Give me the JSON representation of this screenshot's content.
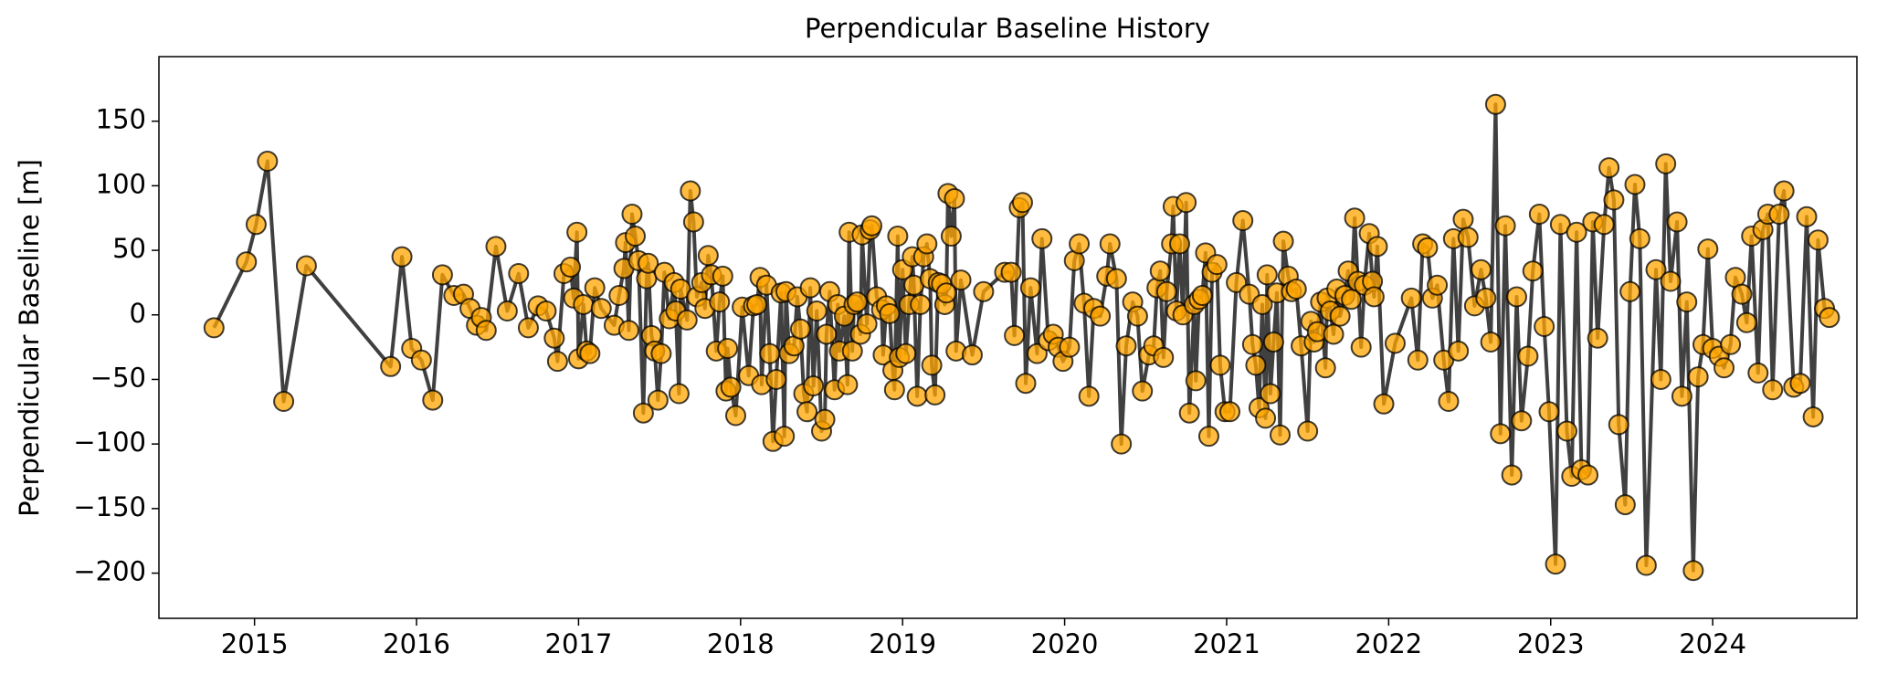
{
  "chart_data": {
    "type": "line",
    "title": "Perpendicular Baseline History",
    "ylabel": "Perpendicular Baseline [m]",
    "line_color": "#404040",
    "marker_color": "#ffa500",
    "marker_edge": "#000000",
    "xlim": [
      2014.41,
      2024.89
    ],
    "ylim": [
      -235,
      200
    ],
    "xticks": [
      2015,
      2016,
      2017,
      2018,
      2019,
      2020,
      2021,
      2022,
      2023,
      2024
    ],
    "yticks": [
      {
        "value": -200,
        "label": "−200"
      },
      {
        "value": -150,
        "label": "−150"
      },
      {
        "value": -100,
        "label": "−100"
      },
      {
        "value": -50,
        "label": "−50"
      },
      0,
      50,
      100,
      150
    ],
    "x": [
      2014.75,
      2014.95,
      2015.01,
      2015.08,
      2015.18,
      2015.32,
      2015.84,
      2015.91,
      2015.97,
      2016.03,
      2016.1,
      2016.16,
      2016.23,
      2016.29,
      2016.33,
      2016.37,
      2016.4,
      2016.43,
      2016.49,
      2016.56,
      2016.63,
      2016.69,
      2016.75,
      2016.8,
      2016.85,
      2016.87,
      2016.91,
      2016.95,
      2016.97,
      2016.99,
      2017.0,
      2017.03,
      2017.05,
      2017.07,
      2017.1,
      2017.14,
      2017.22,
      2017.25,
      2017.28,
      2017.29,
      2017.31,
      2017.33,
      2017.35,
      2017.37,
      2017.4,
      2017.42,
      2017.43,
      2017.45,
      2017.47,
      2017.49,
      2017.51,
      2017.53,
      2017.56,
      2017.59,
      2017.6,
      2017.62,
      2017.63,
      2017.67,
      2017.69,
      2017.71,
      2017.73,
      2017.76,
      2017.78,
      2017.8,
      2017.82,
      2017.85,
      2017.87,
      2017.89,
      2017.91,
      2017.92,
      2017.94,
      2017.97,
      2018.01,
      2018.05,
      2018.08,
      2018.1,
      2018.12,
      2018.13,
      2018.16,
      2018.18,
      2018.2,
      2018.22,
      2018.25,
      2018.27,
      2018.28,
      2018.3,
      2018.33,
      2018.35,
      2018.37,
      2018.39,
      2018.41,
      2018.43,
      2018.45,
      2018.47,
      2018.5,
      2018.52,
      2018.53,
      2018.55,
      2018.58,
      2018.6,
      2018.61,
      2018.64,
      2018.66,
      2018.67,
      2018.69,
      2018.7,
      2018.72,
      2018.74,
      2018.75,
      2018.78,
      2018.8,
      2018.81,
      2018.84,
      2018.87,
      2018.88,
      2018.9,
      2018.92,
      2018.94,
      2018.95,
      2018.97,
      2018.98,
      2019.0,
      2019.02,
      2019.04,
      2019.06,
      2019.07,
      2019.09,
      2019.11,
      2019.13,
      2019.15,
      2019.17,
      2019.18,
      2019.2,
      2019.22,
      2019.24,
      2019.26,
      2019.27,
      2019.28,
      2019.3,
      2019.32,
      2019.33,
      2019.36,
      2019.43,
      2019.5,
      2019.63,
      2019.67,
      2019.69,
      2019.72,
      2019.74,
      2019.76,
      2019.79,
      2019.83,
      2019.86,
      2019.9,
      2019.93,
      2019.96,
      2019.99,
      2020.03,
      2020.06,
      2020.09,
      2020.12,
      2020.15,
      2020.18,
      2020.22,
      2020.26,
      2020.28,
      2020.32,
      2020.35,
      2020.38,
      2020.42,
      2020.45,
      2020.48,
      2020.52,
      2020.55,
      2020.57,
      2020.59,
      2020.61,
      2020.63,
      2020.66,
      2020.67,
      2020.69,
      2020.71,
      2020.73,
      2020.75,
      2020.77,
      2020.8,
      2020.81,
      2020.83,
      2020.85,
      2020.87,
      2020.89,
      2020.91,
      2020.94,
      2020.96,
      2020.99,
      2021.02,
      2021.06,
      2021.1,
      2021.14,
      2021.16,
      2021.18,
      2021.2,
      2021.22,
      2021.24,
      2021.25,
      2021.27,
      2021.29,
      2021.31,
      2021.33,
      2021.35,
      2021.38,
      2021.4,
      2021.43,
      2021.46,
      2021.5,
      2021.52,
      2021.54,
      2021.56,
      2021.58,
      2021.61,
      2021.62,
      2021.64,
      2021.66,
      2021.68,
      2021.7,
      2021.73,
      2021.75,
      2021.77,
      2021.79,
      2021.81,
      2021.83,
      2021.85,
      2021.88,
      2021.9,
      2021.91,
      2021.93,
      2021.97,
      2022.04,
      2022.14,
      2022.18,
      2022.21,
      2022.24,
      2022.27,
      2022.3,
      2022.34,
      2022.37,
      2022.4,
      2022.43,
      2022.46,
      2022.49,
      2022.53,
      2022.57,
      2022.6,
      2022.63,
      2022.66,
      2022.69,
      2022.72,
      2022.76,
      2022.79,
      2022.82,
      2022.86,
      2022.89,
      2022.93,
      2022.96,
      2022.99,
      2023.03,
      2023.06,
      2023.1,
      2023.13,
      2023.16,
      2023.19,
      2023.23,
      2023.26,
      2023.29,
      2023.33,
      2023.36,
      2023.39,
      2023.42,
      2023.46,
      2023.49,
      2023.52,
      2023.55,
      2023.59,
      2023.65,
      2023.68,
      2023.71,
      2023.74,
      2023.78,
      2023.81,
      2023.84,
      2023.88,
      2023.91,
      2023.94,
      2023.97,
      2024.0,
      2024.04,
      2024.07,
      2024.11,
      2024.14,
      2024.18,
      2024.21,
      2024.24,
      2024.28,
      2024.31,
      2024.34,
      2024.37,
      2024.41,
      2024.44,
      2024.5,
      2024.54,
      2024.58,
      2024.62,
      2024.65,
      2024.69,
      2024.72
    ],
    "values": [
      -10,
      41,
      70,
      119,
      -67,
      38,
      -40,
      45,
      -26,
      -35,
      -66,
      31,
      15,
      16,
      5,
      -8,
      -2,
      -12,
      53,
      3,
      32,
      -10,
      7,
      3,
      -18,
      -36,
      32,
      37,
      13,
      64,
      -34,
      8,
      -28,
      -30,
      21,
      5,
      -8,
      15,
      36,
      56,
      -12,
      78,
      61,
      42,
      -76,
      28,
      40,
      -16,
      -28,
      -66,
      -30,
      33,
      -3,
      25,
      3,
      -61,
      20,
      -4,
      96,
      72,
      14,
      25,
      5,
      46,
      31,
      -28,
      10,
      30,
      -59,
      -26,
      -56,
      -78,
      6,
      -47,
      7,
      8,
      29,
      -54,
      23,
      -30,
      -98,
      -50,
      17,
      -94,
      18,
      -30,
      -24,
      14,
      -11,
      -61,
      -75,
      21,
      -55,
      3,
      -90,
      -81,
      -15,
      18,
      -58,
      8,
      -28,
      -1,
      -54,
      64,
      -28,
      8,
      10,
      -15,
      62,
      -7,
      66,
      69,
      14,
      4,
      -31,
      7,
      1,
      -43,
      -58,
      61,
      -33,
      35,
      -30,
      8,
      45,
      23,
      -63,
      8,
      45,
      55,
      28,
      -39,
      -62,
      25,
      24,
      8,
      17,
      94,
      61,
      90,
      -28,
      27,
      -31,
      18,
      33,
      33,
      -16,
      83,
      87,
      -53,
      21,
      -30,
      59,
      -20,
      -15,
      -25,
      -36,
      -25,
      42,
      55,
      9,
      -63,
      5,
      -1,
      30,
      55,
      28,
      -100,
      -24,
      10,
      -1,
      -59,
      -31,
      -24,
      21,
      34,
      -33,
      18,
      55,
      84,
      3,
      55,
      0,
      87,
      -76,
      8,
      -51,
      12,
      15,
      48,
      -94,
      33,
      39,
      -39,
      -75,
      -75,
      25,
      73,
      16,
      -23,
      -39,
      -72,
      8,
      -80,
      31,
      -61,
      -21,
      17,
      -93,
      57,
      30,
      18,
      20,
      -24,
      -90,
      -5,
      -21,
      -13,
      10,
      -41,
      13,
      3,
      -15,
      20,
      -1,
      15,
      34,
      12,
      75,
      26,
      -25,
      23,
      63,
      26,
      14,
      53,
      -69,
      -22,
      13,
      -35,
      55,
      52,
      13,
      23,
      -35,
      -67,
      59,
      -28,
      74,
      60,
      7,
      35,
      13,
      -21,
      163,
      -92,
      69,
      -124,
      14,
      -82,
      -32,
      34,
      78,
      -9,
      -75,
      -193,
      70,
      -90,
      -125,
      64,
      -120,
      -124,
      72,
      -18,
      70,
      114,
      89,
      -85,
      -147,
      18,
      101,
      59,
      -194,
      35,
      -50,
      117,
      26,
      72,
      -63,
      10,
      -198,
      -48,
      -23,
      51,
      -26,
      -32,
      -41,
      -23,
      29,
      16,
      -6,
      61,
      -45,
      66,
      78,
      -58,
      78,
      96,
      -56,
      -53,
      76,
      -79,
      58,
      5,
      -2
    ]
  }
}
